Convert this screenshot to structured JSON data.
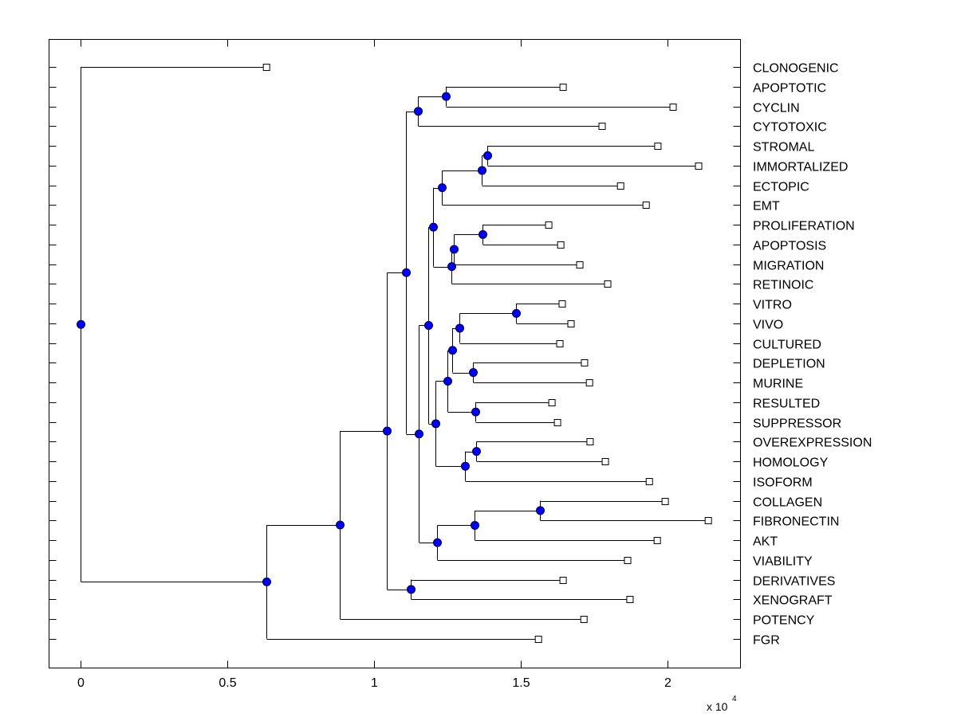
{
  "chart_data": {
    "type": "dendrogram",
    "title": "",
    "xlabel": "",
    "ylabel": "",
    "x_multiplier_label": "x 10",
    "x_multiplier_exponent": "4",
    "xlim": [
      -0.107,
      2.25
    ],
    "x_ticks": [
      0,
      0.5,
      1,
      1.5,
      2
    ],
    "x_tick_labels": [
      "0",
      "0.5",
      "1",
      "1.5",
      "2"
    ],
    "grid": false,
    "colors": {
      "node_fill": "#0000ff",
      "line": "#000000",
      "leaf_fill": "#ffffff"
    },
    "leaves": [
      {
        "label": "CLONOGENIC",
        "x": 0.633
      },
      {
        "label": "APOPTOTIC",
        "x": 1.644
      },
      {
        "label": "CYCLIN",
        "x": 2.019
      },
      {
        "label": "CYTOTOXIC",
        "x": 1.777
      },
      {
        "label": "STROMAL",
        "x": 1.967
      },
      {
        "label": "IMMORTALIZED",
        "x": 2.106
      },
      {
        "label": "ECTOPIC",
        "x": 1.84
      },
      {
        "label": "EMT",
        "x": 1.927
      },
      {
        "label": "PROLIFERATION",
        "x": 1.595
      },
      {
        "label": "APOPTOSIS",
        "x": 1.636
      },
      {
        "label": "MIGRATION",
        "x": 1.701
      },
      {
        "label": "RETINOIC",
        "x": 1.796
      },
      {
        "label": "VITRO",
        "x": 1.641
      },
      {
        "label": "VIVO",
        "x": 1.671
      },
      {
        "label": "CULTURED",
        "x": 1.633
      },
      {
        "label": "DEPLETION",
        "x": 1.717
      },
      {
        "label": "MURINE",
        "x": 1.734
      },
      {
        "label": "RESULTED",
        "x": 1.606
      },
      {
        "label": "SUPPRESSOR",
        "x": 1.625
      },
      {
        "label": "OVEREXPRESSION",
        "x": 1.736
      },
      {
        "label": "HOMOLOGY",
        "x": 1.788
      },
      {
        "label": "ISOFORM",
        "x": 1.938
      },
      {
        "label": "COLLAGEN",
        "x": 1.992
      },
      {
        "label": "FIBRONECTIN",
        "x": 2.139
      },
      {
        "label": "AKT",
        "x": 1.965
      },
      {
        "label": "VIABILITY",
        "x": 1.864
      },
      {
        "label": "DERIVATIVES",
        "x": 1.644
      },
      {
        "label": "XENOGRAFT",
        "x": 1.872
      },
      {
        "label": "POTENCY",
        "x": 1.715
      },
      {
        "label": "FGR",
        "x": 1.56
      }
    ],
    "nodes": [
      {
        "id": "root",
        "x": 0.0,
        "children": [
          "L0",
          "n1"
        ]
      },
      {
        "id": "n1",
        "x": 0.633,
        "children": [
          "n2",
          "L29"
        ]
      },
      {
        "id": "n2",
        "x": 0.883,
        "children": [
          "n3",
          "L28"
        ]
      },
      {
        "id": "n3",
        "x": 1.043,
        "children": [
          "n4",
          "ndx"
        ]
      },
      {
        "id": "ndx",
        "x": 1.125,
        "children": [
          "L26",
          "L27"
        ]
      },
      {
        "id": "n4",
        "x": 1.109,
        "children": [
          "n5",
          "n6"
        ]
      },
      {
        "id": "n5",
        "x": 1.149,
        "children": [
          "n5a",
          "L3"
        ]
      },
      {
        "id": "n5a",
        "x": 1.245,
        "children": [
          "L1",
          "L2"
        ]
      },
      {
        "id": "n6",
        "x": 1.152,
        "children": [
          "n7",
          "n8"
        ]
      },
      {
        "id": "n7",
        "x": 1.185,
        "children": [
          "n9",
          "n10"
        ]
      },
      {
        "id": "n9",
        "x": 1.201,
        "children": [
          "n11",
          "n12"
        ]
      },
      {
        "id": "n11",
        "x": 1.231,
        "children": [
          "n13",
          "L7"
        ]
      },
      {
        "id": "n13",
        "x": 1.367,
        "children": [
          "n14",
          "L6"
        ]
      },
      {
        "id": "n14",
        "x": 1.386,
        "children": [
          "L4",
          "L5"
        ]
      },
      {
        "id": "n12",
        "x": 1.264,
        "children": [
          "n15",
          "L11"
        ]
      },
      {
        "id": "n15",
        "x": 1.272,
        "children": [
          "n16",
          "L10"
        ]
      },
      {
        "id": "n16",
        "x": 1.37,
        "children": [
          "L8",
          "L9"
        ]
      },
      {
        "id": "n10",
        "x": 1.209,
        "children": [
          "n17",
          "n18"
        ]
      },
      {
        "id": "n17",
        "x": 1.25,
        "children": [
          "n19",
          "n20"
        ]
      },
      {
        "id": "n19",
        "x": 1.266,
        "children": [
          "n21",
          "n22"
        ]
      },
      {
        "id": "n21",
        "x": 1.293,
        "children": [
          "n23",
          "L14"
        ]
      },
      {
        "id": "n23",
        "x": 1.484,
        "children": [
          "L12",
          "L13"
        ]
      },
      {
        "id": "n22",
        "x": 1.337,
        "children": [
          "L15",
          "L16"
        ]
      },
      {
        "id": "n20",
        "x": 1.345,
        "children": [
          "L17",
          "L18"
        ]
      },
      {
        "id": "n18",
        "x": 1.312,
        "children": [
          "n24",
          "L21"
        ]
      },
      {
        "id": "n24",
        "x": 1.348,
        "children": [
          "L19",
          "L20"
        ]
      },
      {
        "id": "n8",
        "x": 1.215,
        "children": [
          "n25",
          "L25"
        ]
      },
      {
        "id": "n25",
        "x": 1.342,
        "children": [
          "n26",
          "L24"
        ]
      },
      {
        "id": "n26",
        "x": 1.565,
        "children": [
          "L22",
          "L23"
        ]
      }
    ]
  }
}
